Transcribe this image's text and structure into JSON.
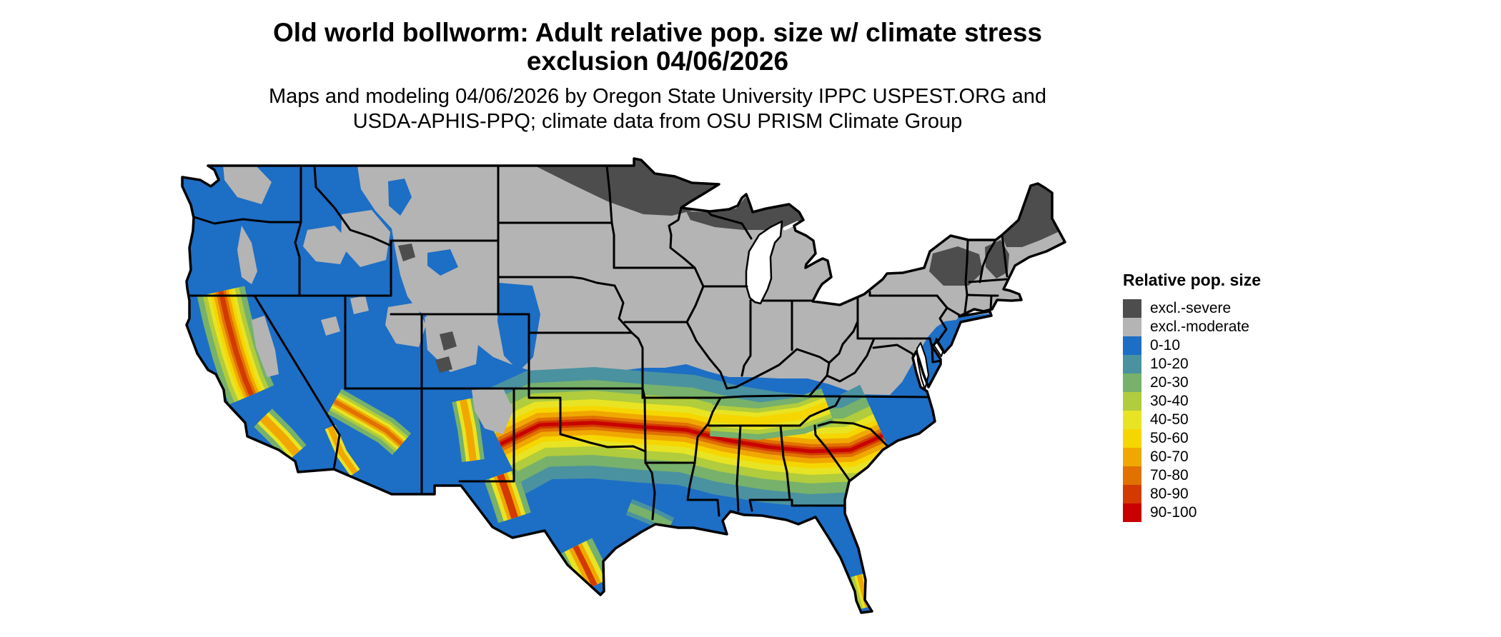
{
  "title": {
    "line1": "Old world bollworm: Adult relative pop. size w/ climate stress",
    "line2": "exclusion 04/06/2026"
  },
  "subtitle": {
    "line1": "Maps and modeling 04/06/2026 by Oregon State University IPPC USPEST.ORG and",
    "line2": "USDA-APHIS-PPQ; climate data from OSU PRISM Climate Group"
  },
  "legend": {
    "title": "Relative pop. size",
    "items": [
      {
        "key": "excl_severe",
        "label": "excl.-severe",
        "color": "#4d4d4d"
      },
      {
        "key": "excl_moderate",
        "label": "excl.-moderate",
        "color": "#b4b4b4"
      },
      {
        "key": "b0",
        "label": "0-10",
        "color": "#1d6ec5"
      },
      {
        "key": "b10",
        "label": "10-20",
        "color": "#4a92a0"
      },
      {
        "key": "b20",
        "label": "20-30",
        "color": "#77b16b"
      },
      {
        "key": "b30",
        "label": "30-40",
        "color": "#b1cc3c"
      },
      {
        "key": "b40",
        "label": "40-50",
        "color": "#e8e423"
      },
      {
        "key": "b50",
        "label": "50-60",
        "color": "#f6d600"
      },
      {
        "key": "b60",
        "label": "60-70",
        "color": "#f0a800"
      },
      {
        "key": "b70",
        "label": "70-80",
        "color": "#e17100"
      },
      {
        "key": "b80",
        "label": "80-90",
        "color": "#d23a00"
      },
      {
        "key": "b90",
        "label": "90-100",
        "color": "#c80000"
      }
    ]
  },
  "map": {
    "region": "Continental United States",
    "background": "#ffffff",
    "water": "#ffffff",
    "border_color": "#000000"
  },
  "chart_data": {
    "type": "heatmap",
    "title": "Old world bollworm: Adult relative pop. size w/ climate stress exclusion 04/06/2026",
    "legend_title": "Relative pop. size",
    "classes": [
      "excl.-severe",
      "excl.-moderate",
      "0-10",
      "10-20",
      "20-30",
      "30-40",
      "40-50",
      "50-60",
      "60-70",
      "70-80",
      "80-90",
      "90-100"
    ],
    "legend_position": "right",
    "notes_visible_patterns": "Exclusion-severe across northern Minnesota/Wisconsin/Michigan UP, northern Maine, Adirondacks; exclusion-moderate across northern plains, Midwest and Northeast; 0-10 across the West and Gulf/Atlantic coastal plain; high 60-100 band through California Central Valley, central Arizona, eastern New Mexico, north Texas, Oklahoma, Arkansas, Mississippi, Alabama, Georgia, South Carolina; warm spots in south Texas and south Florida tip."
  }
}
